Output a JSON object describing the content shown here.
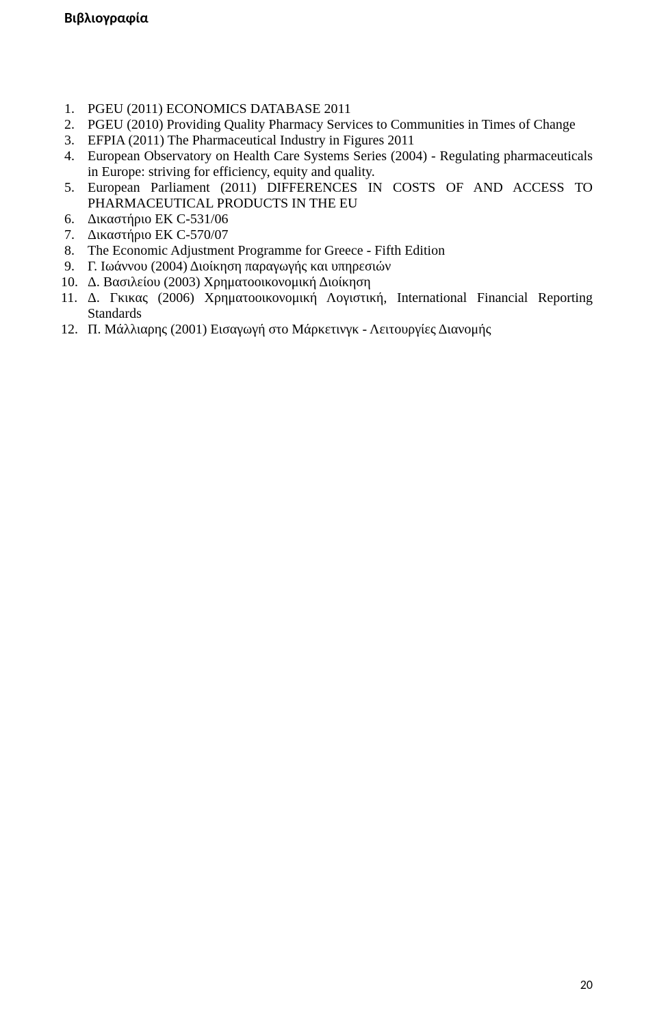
{
  "heading": "Βιβλιογραφία",
  "items": [
    "PGEU (2011) ECONOMICS DATABASE 2011",
    "PGEU (2010) Providing Quality Pharmacy Services to Communities in Times of Change",
    "EFPIA (2011) The Pharmaceutical Industry in Figures 2011",
    "European Observatory on Health Care Systems Series (2004) - Regulating pharmaceuticals in Europe: striving for efficiency, equity and quality.",
    "European Parliament (2011) DIFFERENCES IN COSTS OF AND ACCESS TO PHARMACEUTICAL PRODUCTS IN THE EU",
    "Δικαστήριο ΕΚ C-531/06",
    "Δικαστήριο ΕΚ C-570/07",
    "The Economic Adjustment Programme for Greece - Fifth Edition",
    "Γ. Ιωάννου (2004) Διοίκηση παραγωγής και υπηρεσιών",
    "Δ. Βασιλείου (2003) Χρηματοοικονομική Διοίκηση",
    "Δ. Γκικας (2006) Χρηματοοικονομική Λογιστική, International Financial Reporting Standards",
    "Π. Μάλλιαρης (2001) Εισαγωγή στο Μάρκετινγκ - Λειτουργίες Διανομής"
  ],
  "page_number": "20"
}
